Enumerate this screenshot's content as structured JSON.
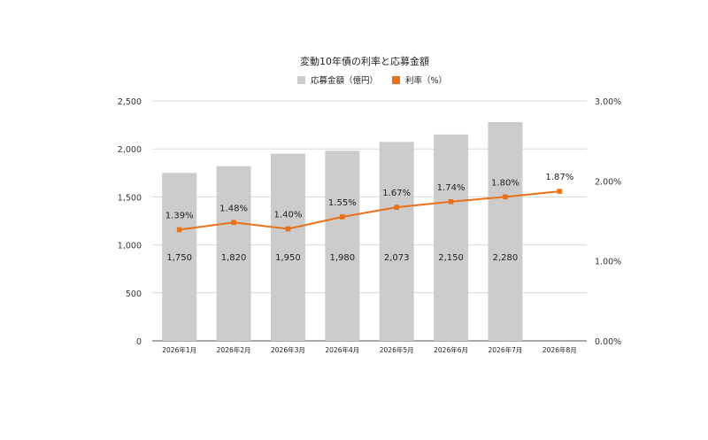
{
  "chart_data": {
    "type": "bar",
    "title": "変動10年債の利率と応募金額",
    "categories": [
      "2026年1月",
      "2026年2月",
      "2026年3月",
      "2026年4月",
      "2026年5月",
      "2026年6月",
      "2026年7月",
      "2026年8月"
    ],
    "series": [
      {
        "name": "応募金額（億円）",
        "type": "bar",
        "axis": "left",
        "color": "#cccccc",
        "values": [
          1750,
          1820,
          1950,
          1980,
          2073,
          2150,
          2280,
          null
        ],
        "labels": [
          "1,750",
          "1,820",
          "1,950",
          "1,980",
          "2,073",
          "2,150",
          "2,280",
          ""
        ]
      },
      {
        "name": "利率（%）",
        "type": "line",
        "axis": "right",
        "color": "#e8711a",
        "values": [
          1.39,
          1.48,
          1.4,
          1.55,
          1.67,
          1.74,
          1.8,
          1.87
        ],
        "labels": [
          "1.39%",
          "1.48%",
          "1.40%",
          "1.55%",
          "1.67%",
          "1.74%",
          "1.80%",
          "1.87%"
        ]
      }
    ],
    "y_left": {
      "range": [
        0,
        2500
      ],
      "ticks": [
        0,
        500,
        1000,
        1500,
        2000,
        2500
      ],
      "tick_labels": [
        "0",
        "500",
        "1,000",
        "1,500",
        "2,000",
        "2,500"
      ]
    },
    "y_right": {
      "range": [
        0,
        3
      ],
      "ticks": [
        0,
        1,
        2,
        3
      ],
      "tick_labels": [
        "0.00%",
        "1.00%",
        "2.00%",
        "3.00%"
      ]
    },
    "grid": true,
    "legend_position": "top-center"
  }
}
